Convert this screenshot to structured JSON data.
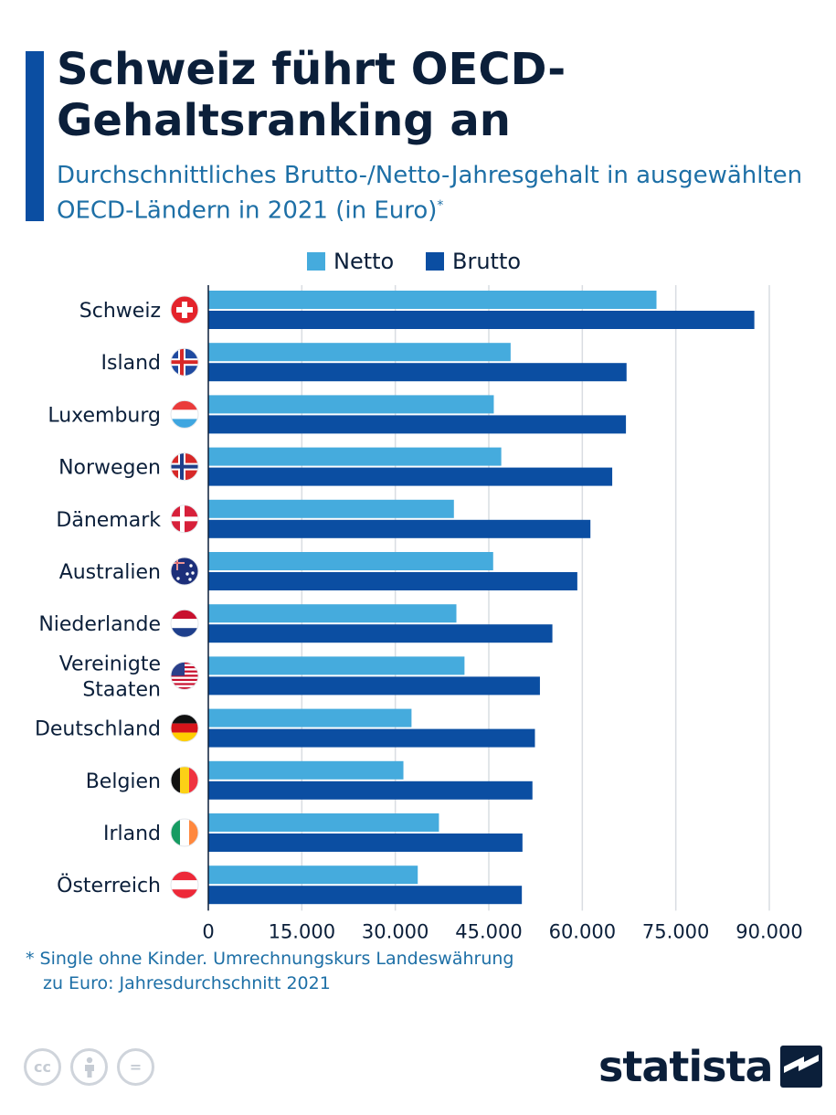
{
  "header": {
    "title": "Schweiz führt OECD-Gehaltsranking an",
    "subtitle": "Durchschnittliches Brutto-/Netto-Jahresgehalt in ausgewählten OECD-Ländern in 2021 (in Euro)",
    "subtitle_mark": "*"
  },
  "legend": {
    "netto": "Netto",
    "brutto": "Brutto"
  },
  "colors": {
    "accent": "#0b4ea2",
    "netto": "#45abdd",
    "brutto": "#0b4ea2",
    "grid": "#d9dde2",
    "text": "#0b1f3a",
    "subtitle": "#1d6fa6"
  },
  "chart_data": {
    "type": "bar",
    "orientation": "horizontal",
    "categories": [
      "Schweiz",
      "Island",
      "Luxemburg",
      "Norwegen",
      "Dänemark",
      "Australien",
      "Niederlande",
      "Vereinigte Staaten",
      "Deutschland",
      "Belgien",
      "Irland",
      "Österreich"
    ],
    "category_flags": [
      "switzerland-flag-icon",
      "iceland-flag-icon",
      "luxembourg-flag-icon",
      "norway-flag-icon",
      "denmark-flag-icon",
      "australia-flag-icon",
      "netherlands-flag-icon",
      "united-states-flag-icon",
      "germany-flag-icon",
      "belgium-flag-icon",
      "ireland-flag-icon",
      "austria-flag-icon"
    ],
    "series": [
      {
        "name": "Netto",
        "values": [
          71900,
          48500,
          45800,
          47000,
          39400,
          45700,
          39800,
          41100,
          32600,
          31300,
          37000,
          33600
        ]
      },
      {
        "name": "Brutto",
        "values": [
          87600,
          67100,
          67000,
          64800,
          61300,
          59200,
          55200,
          53200,
          52400,
          52000,
          50400,
          50300
        ]
      }
    ],
    "xticks": [
      "0",
      "15.000",
      "30.000",
      "45.000",
      "60.000",
      "75.000",
      "90.000"
    ],
    "xtick_values": [
      0,
      15000,
      30000,
      45000,
      60000,
      75000,
      90000
    ],
    "xlim": [
      0,
      90000
    ],
    "grid": true,
    "legend_position": "top-center"
  },
  "footnote": {
    "line1": "* Single ohne Kinder. Umrechnungskurs Landeswährung",
    "line2": "zu Euro: Jahresdurchschnitt 2021"
  },
  "footer": {
    "license_icons": [
      "cc-icon",
      "by-person-icon",
      "nd-equals-icon"
    ],
    "cc_text": "cc",
    "nd_text": "=",
    "brand": "statista"
  }
}
